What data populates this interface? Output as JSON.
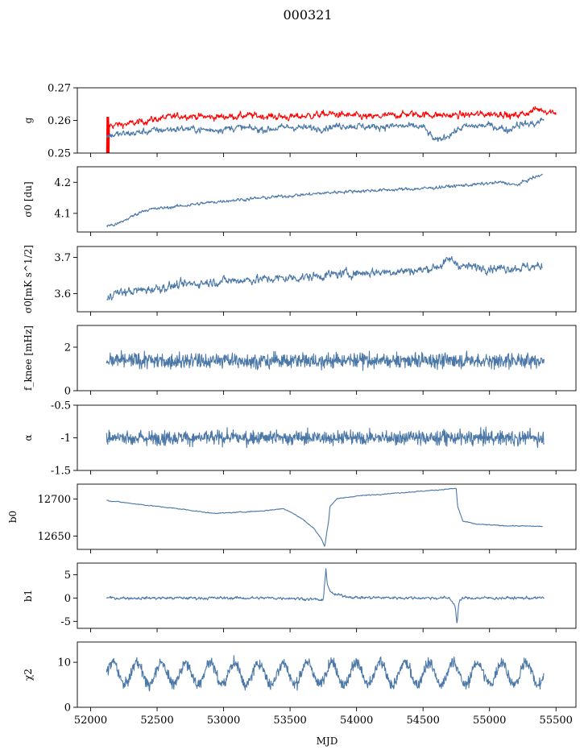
{
  "figure": {
    "title": "000321",
    "xlabel": "MJD",
    "x_ticks": [
      52000,
      52500,
      53000,
      53500,
      54000,
      54500,
      55000,
      55500
    ]
  },
  "colors": {
    "primary": "#4c78a8",
    "reference": "#ff0000"
  },
  "chart_data": [
    {
      "type": "line",
      "panel": "g",
      "ylabel": "g",
      "xlim": [
        51900,
        55650
      ],
      "ylim": [
        0.25,
        0.27
      ],
      "yticks": [
        0.25,
        0.26,
        0.27
      ],
      "series": [
        {
          "color": "#ff0000",
          "shape": "gain_red",
          "noise": 0.0006,
          "x": [
            52120,
            52130,
            52135,
            52150,
            52300,
            52500,
            52700,
            52900,
            53200,
            53500,
            53800,
            54100,
            54400,
            54700,
            55000,
            55100,
            55150,
            55300,
            55350,
            55500
          ],
          "values": [
            0.2595,
            0.26,
            0.2585,
            0.2585,
            0.259,
            0.2605,
            0.2615,
            0.261,
            0.2615,
            0.261,
            0.262,
            0.261,
            0.262,
            0.2615,
            0.262,
            0.2622,
            0.2612,
            0.2625,
            0.2635,
            0.2625
          ]
        },
        {
          "color": "#4c78a8",
          "shape": "gain_blue",
          "noise": 0.0006,
          "x": [
            52120,
            52150,
            52300,
            52500,
            52700,
            52900,
            53100,
            53300,
            53500,
            53700,
            53900,
            54100,
            54300,
            54500,
            54600,
            54800,
            55000,
            55150,
            55200,
            55350,
            55410
          ],
          "values": [
            0.255,
            0.2555,
            0.256,
            0.257,
            0.2575,
            0.257,
            0.2578,
            0.2572,
            0.258,
            0.2575,
            0.2585,
            0.258,
            0.2583,
            0.258,
            0.2535,
            0.258,
            0.2585,
            0.257,
            0.2588,
            0.259,
            0.2605
          ]
        }
      ]
    },
    {
      "type": "line",
      "panel": "sigma0_du",
      "ylabel": "σ0 [du]",
      "xlim": [
        51900,
        55650
      ],
      "ylim": [
        4.04,
        4.25
      ],
      "yticks": [
        4.1,
        4.2
      ],
      "series": [
        {
          "color": "#4c78a8",
          "shape": "drift",
          "noise": 0.003,
          "x": [
            52120,
            52200,
            52400,
            52700,
            53000,
            53300,
            53600,
            53900,
            54200,
            54500,
            54800,
            55100,
            55200,
            55300,
            55400
          ],
          "values": [
            4.06,
            4.065,
            4.11,
            4.125,
            4.14,
            4.15,
            4.16,
            4.17,
            4.175,
            4.18,
            4.19,
            4.2,
            4.19,
            4.21,
            4.225
          ]
        }
      ]
    },
    {
      "type": "line",
      "panel": "sigma0_mks",
      "ylabel": "σ0[mK s^1/2]",
      "xlim": [
        51900,
        55650
      ],
      "ylim": [
        3.55,
        3.73
      ],
      "yticks": [
        3.6,
        3.7
      ],
      "series": [
        {
          "color": "#4c78a8",
          "shape": "drift",
          "noise": 0.007,
          "x": [
            52120,
            52150,
            52400,
            52700,
            53000,
            53300,
            53600,
            53900,
            54200,
            54500,
            54650,
            54700,
            54800,
            55100,
            55400
          ],
          "values": [
            3.575,
            3.6,
            3.61,
            3.625,
            3.635,
            3.64,
            3.645,
            3.655,
            3.66,
            3.665,
            3.68,
            3.695,
            3.675,
            3.67,
            3.675
          ]
        }
      ]
    },
    {
      "type": "line",
      "panel": "fknee",
      "ylabel": "f_knee [mHz]",
      "xlim": [
        51900,
        55650
      ],
      "ylim": [
        0,
        3
      ],
      "yticks": [
        0,
        2
      ],
      "series": [
        {
          "color": "#4c78a8",
          "shape": "noise",
          "noise": 0.25,
          "x": [
            52120,
            55410
          ],
          "values": [
            1.38,
            1.38
          ]
        }
      ]
    },
    {
      "type": "line",
      "panel": "alpha",
      "ylabel": "α",
      "xlim": [
        51900,
        55650
      ],
      "ylim": [
        -1.5,
        -0.5
      ],
      "yticks": [
        -1.5,
        -1.0,
        -0.5
      ],
      "series": [
        {
          "color": "#4c78a8",
          "shape": "noise",
          "noise": 0.08,
          "x": [
            52120,
            55410
          ],
          "values": [
            -1.0,
            -1.0
          ]
        }
      ]
    },
    {
      "type": "line",
      "panel": "b0",
      "ylabel": "b0",
      "xlim": [
        51900,
        55650
      ],
      "ylim": [
        12632,
        12720
      ],
      "yticks": [
        12650,
        12700
      ],
      "series": [
        {
          "color": "#4c78a8",
          "shape": "smooth",
          "noise": 0.35,
          "x": [
            52120,
            52400,
            52700,
            52900,
            53000,
            53300,
            53450,
            53500,
            53600,
            53680,
            53740,
            53760,
            53790,
            53800,
            53850,
            54000,
            54300,
            54600,
            54730,
            54750,
            54760,
            54800,
            54900,
            55100,
            55400
          ],
          "values": [
            12698,
            12692,
            12686,
            12681,
            12681,
            12684,
            12687,
            12683,
            12672,
            12660,
            12645,
            12636,
            12670,
            12690,
            12700,
            12704,
            12708,
            12712,
            12714,
            12714,
            12690,
            12670,
            12666,
            12664,
            12663
          ]
        }
      ]
    },
    {
      "type": "line",
      "panel": "b1",
      "ylabel": "b1",
      "xlim": [
        51900,
        55650
      ],
      "ylim": [
        -6.5,
        7.5
      ],
      "yticks": [
        -5,
        0,
        5
      ],
      "series": [
        {
          "color": "#4c78a8",
          "shape": "spikes",
          "noise": 0.18,
          "x": [
            52120,
            53500,
            53700,
            53750,
            53770,
            53780,
            53790,
            53820,
            54000,
            54700,
            54740,
            54755,
            54770,
            54800,
            55410
          ],
          "values": [
            0,
            0,
            -0.3,
            -0.6,
            6.5,
            3.0,
            2.2,
            0.8,
            0.1,
            0,
            -1.5,
            -5.5,
            -1.0,
            0,
            0
          ]
        }
      ]
    },
    {
      "type": "line",
      "panel": "chi2",
      "ylabel": "χ2",
      "xlim": [
        51900,
        55650
      ],
      "ylim": [
        0,
        14.5
      ],
      "yticks": [
        0,
        10
      ],
      "series": [
        {
          "color": "#4c78a8",
          "shape": "oscillation",
          "noise": 0.9,
          "mean": 7.5,
          "amplitude": 2.5,
          "period_days": 183,
          "x": [
            52120,
            55410
          ],
          "values": [
            7.5,
            7.5
          ]
        }
      ]
    }
  ]
}
